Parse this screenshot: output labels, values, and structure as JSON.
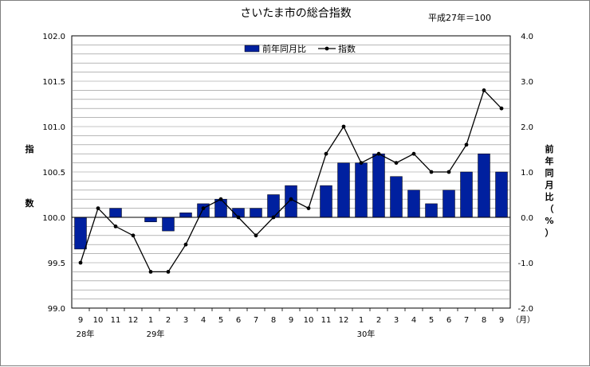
{
  "chart_data": {
    "type": "bar+line",
    "title": "さいたま市の総合指数",
    "subtitle": "平成27年＝100",
    "categories": [
      "9",
      "10",
      "11",
      "12",
      "1",
      "2",
      "3",
      "4",
      "5",
      "6",
      "7",
      "8",
      "9",
      "10",
      "11",
      "12",
      "1",
      "2",
      "3",
      "4",
      "5",
      "6",
      "7",
      "8",
      "9"
    ],
    "x_unit_label": "（月）",
    "year_labels": [
      {
        "label": "28年",
        "category_index": 0
      },
      {
        "label": "29年",
        "category_index": 4
      },
      {
        "label": "30年",
        "category_index": 16
      }
    ],
    "series": [
      {
        "name": "前年同月比",
        "kind": "bar",
        "axis": "right",
        "color": "#00209f",
        "values": [
          -0.7,
          0.0,
          0.2,
          0.0,
          -0.1,
          -0.3,
          0.1,
          0.3,
          0.4,
          0.2,
          0.2,
          0.5,
          0.7,
          0.0,
          0.7,
          1.2,
          1.2,
          1.4,
          0.9,
          0.6,
          0.3,
          0.6,
          1.0,
          1.4,
          1.0
        ]
      },
      {
        "name": "指数",
        "kind": "line",
        "axis": "left",
        "color": "#000000",
        "values": [
          99.5,
          100.1,
          99.9,
          99.8,
          99.4,
          99.4,
          99.7,
          100.1,
          100.2,
          100.0,
          99.8,
          100.0,
          100.2,
          100.1,
          100.7,
          101.0,
          100.6,
          100.7,
          100.6,
          100.7,
          100.5,
          100.5,
          100.8,
          101.4,
          101.2
        ]
      }
    ],
    "y_left": {
      "label": "指数",
      "min": 99.0,
      "max": 102.0,
      "ticks": [
        "99.0",
        "99.5",
        "100.0",
        "100.5",
        "101.0",
        "101.5",
        "102.0"
      ]
    },
    "y_right": {
      "label": "前年同月比（%）",
      "min": -2.0,
      "max": 4.0,
      "ticks": [
        "-2.0",
        "-1.0",
        "0.0",
        "1.0",
        "2.0",
        "3.0",
        "4.0"
      ]
    },
    "grid": true,
    "legend_position": "top-center"
  }
}
